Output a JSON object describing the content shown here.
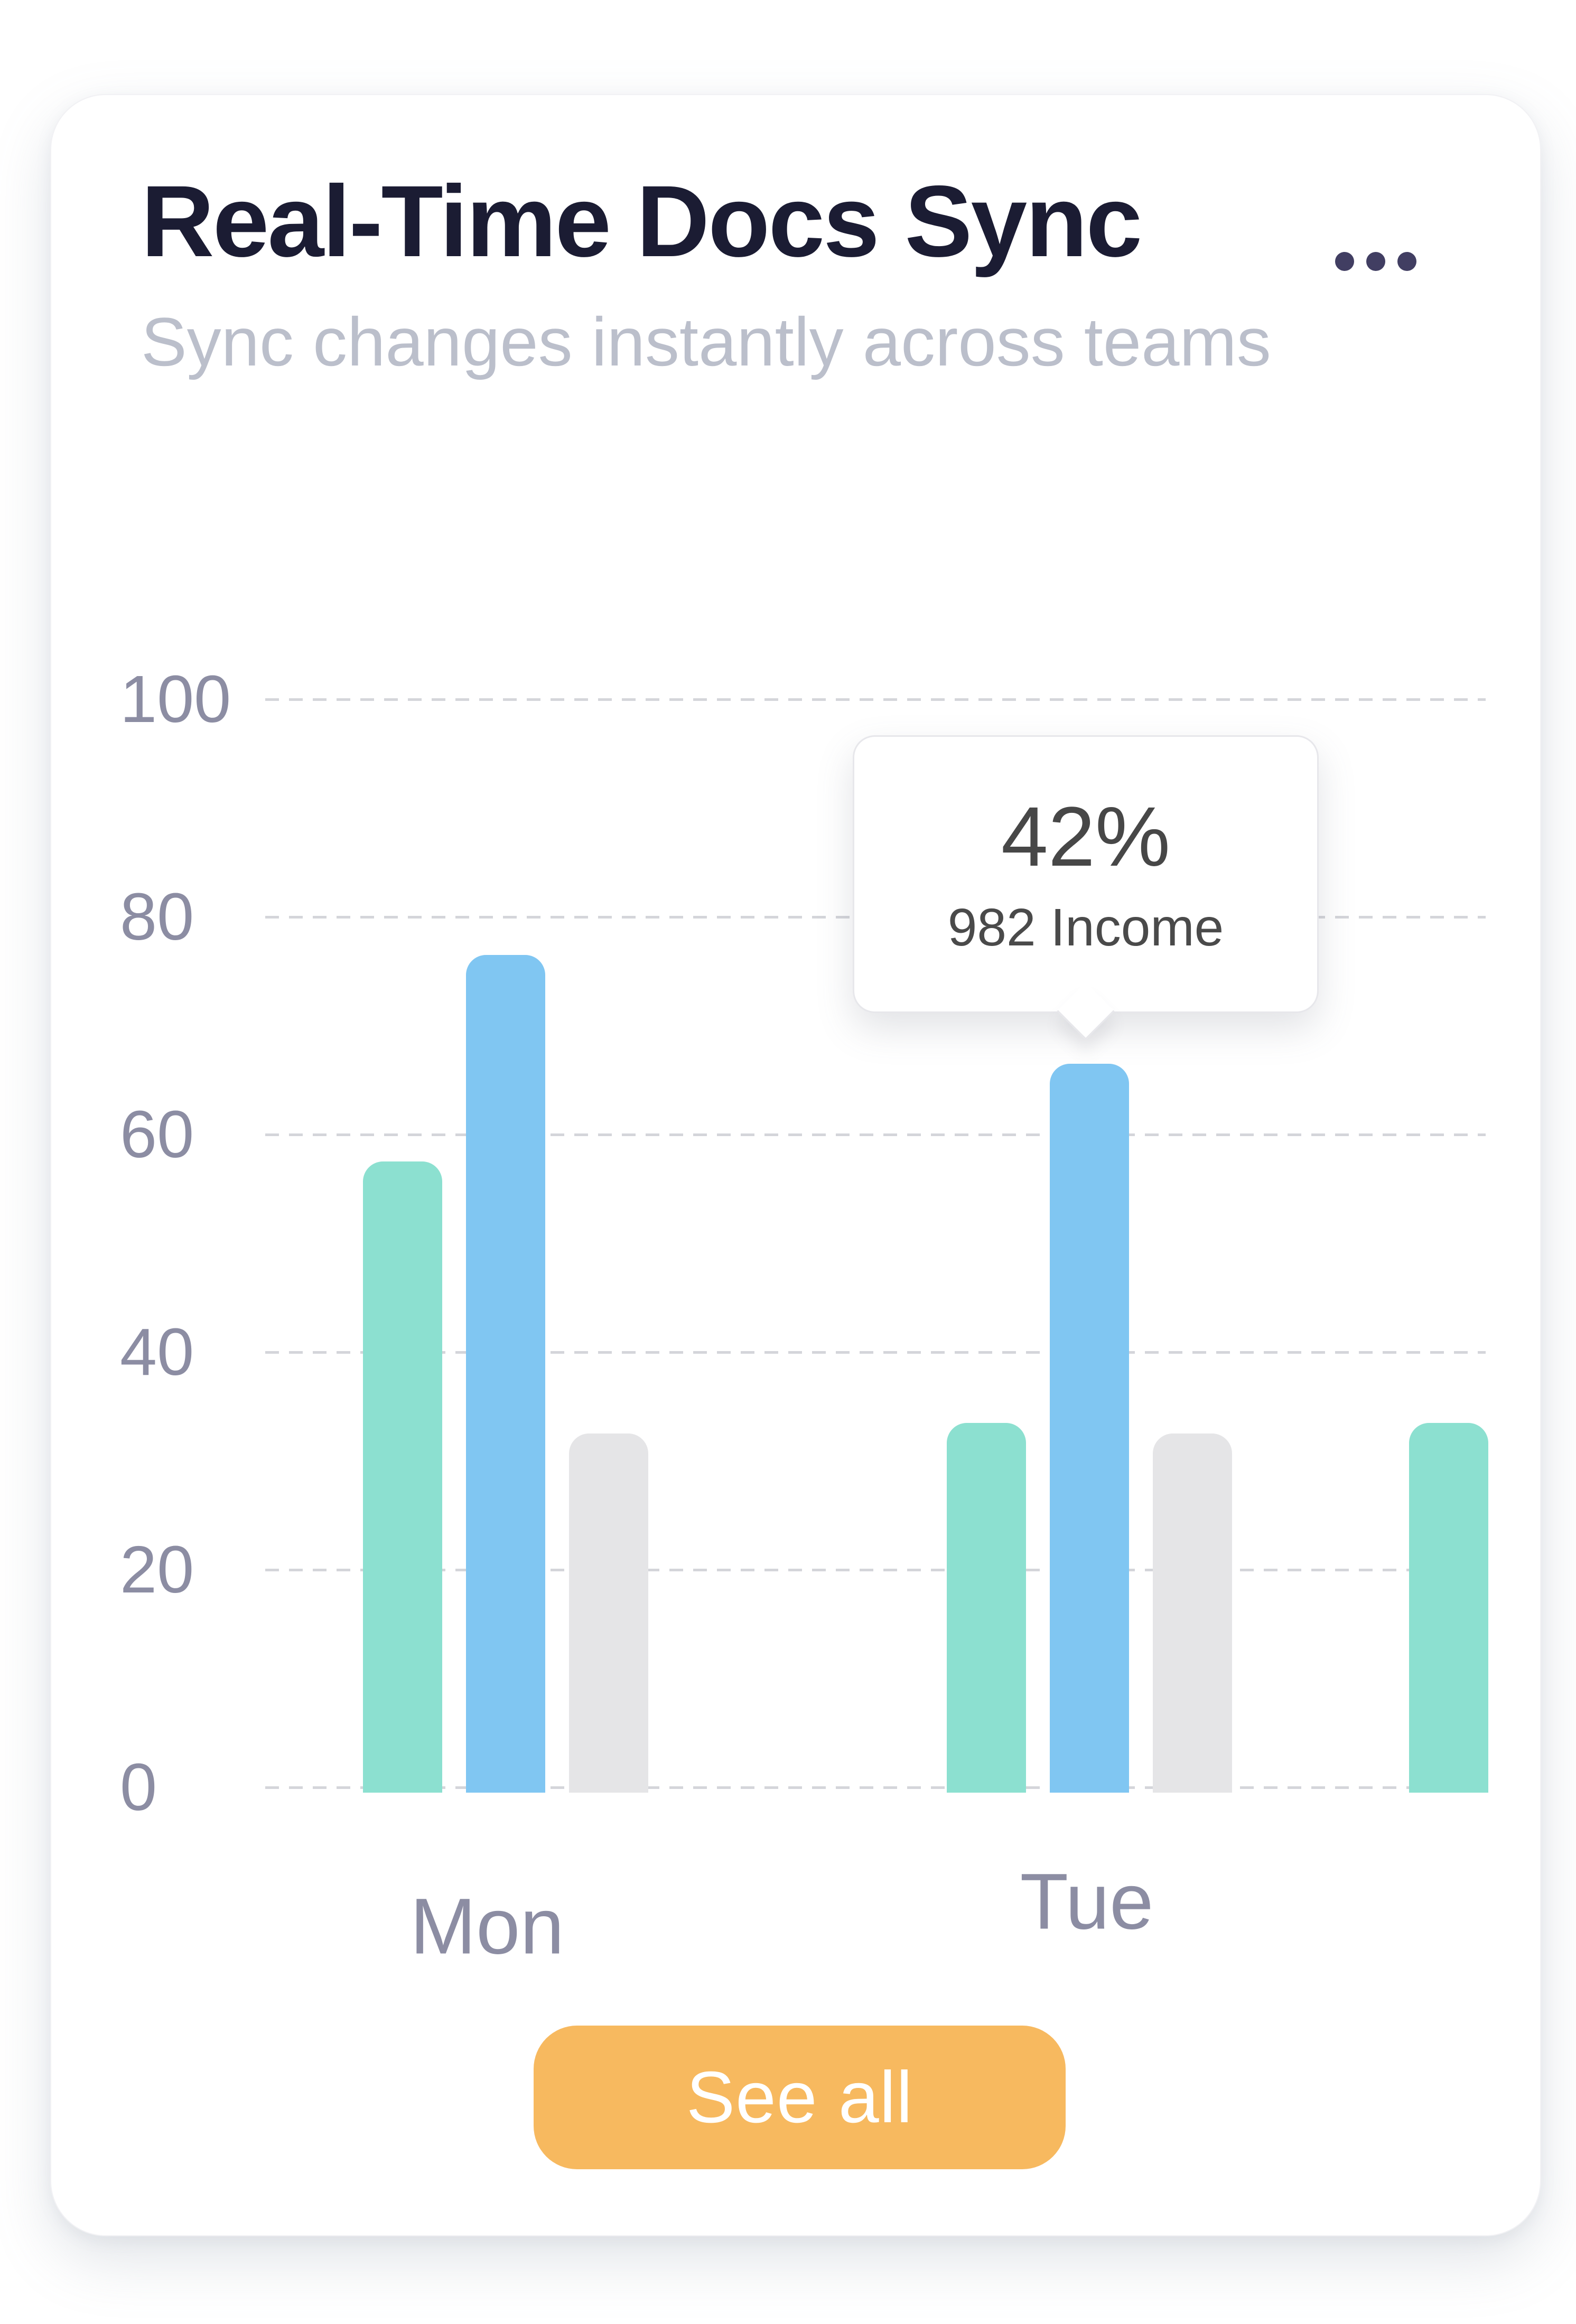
{
  "card": {
    "title": "Real-Time Docs Sync",
    "subtitle": "Sync changes instantly across teams",
    "see_all_label": "See all",
    "menu_icon": "ellipsis-icon"
  },
  "tooltip": {
    "value": "42%",
    "label": "982 Income"
  },
  "colors": {
    "teal": "#8CE0D0",
    "blue": "#80C6F2",
    "gray": "#E5E5E7",
    "accent_orange": "#F7B95F",
    "title_text": "#1B1C33",
    "subtitle_text": "#BBBFCB",
    "axis_text": "#8C8DA3",
    "menu_dots": "#413E62",
    "gridline": "#D4D5DA",
    "tooltip_value_text": "#474747",
    "tooltip_label_text": "#4A4A4A"
  },
  "chart_data": {
    "type": "bar",
    "categories": [
      "Mon",
      "Tue"
    ],
    "series": [
      {
        "name": "teal",
        "values": [
          58,
          34,
          34
        ]
      },
      {
        "name": "blue",
        "values": [
          77,
          67,
          null
        ]
      },
      {
        "name": "gray",
        "values": [
          33,
          33,
          null
        ]
      }
    ],
    "partial_third_group": "only teal bar visible at right edge, no category label",
    "title": "Real-Time Docs Sync",
    "xlabel": "",
    "ylabel": "",
    "y_ticks": [
      0,
      20,
      40,
      60,
      80,
      100
    ],
    "ylim": [
      0,
      100
    ],
    "grid": "dashed horizontal lines",
    "legend": "none",
    "tooltip": {
      "anchor_category_index": 1,
      "anchor_series": "blue",
      "value": "42%",
      "label": "982 Income"
    }
  }
}
